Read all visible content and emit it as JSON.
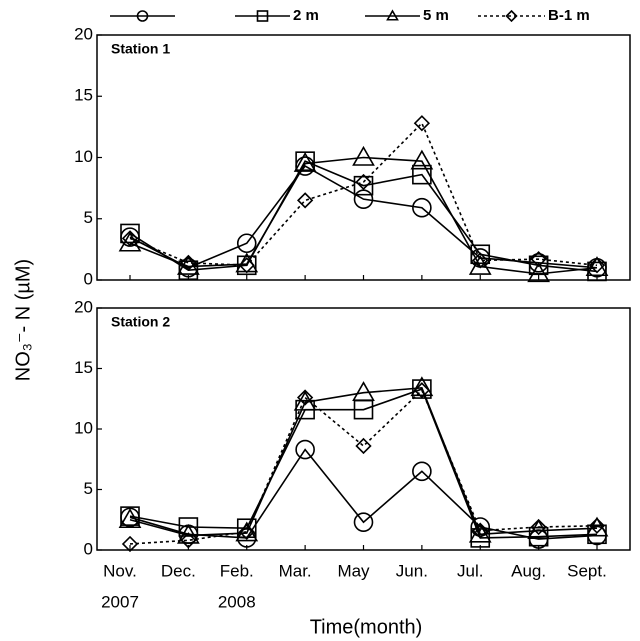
{
  "chart_data": [
    {
      "type": "line",
      "title": "Station 1",
      "ylabel": "NO₃⁻- N (µM)",
      "categories": [
        "Nov.",
        "Dec.",
        "Feb.",
        "Mar.",
        "May",
        "Jun.",
        "Jul.",
        "Aug.",
        "Sept."
      ],
      "ylim": [
        0,
        20
      ],
      "yticks": [
        0,
        5,
        10,
        15,
        20
      ],
      "series": [
        {
          "name": null,
          "color": "#000000",
          "marker": "circle",
          "dashed": false,
          "values": [
            3.5,
            1.0,
            3.0,
            9.3,
            6.6,
            5.9,
            1.8,
            1.4,
            1.0
          ]
        },
        {
          "name": "2 m",
          "color": "#000000",
          "marker": "square",
          "dashed": false,
          "values": [
            3.8,
            0.8,
            1.2,
            9.7,
            7.7,
            8.6,
            2.1,
            1.2,
            0.7
          ]
        },
        {
          "name": "5 m",
          "color": "#000000",
          "marker": "triangle",
          "dashed": false,
          "values": [
            3.0,
            1.1,
            1.3,
            9.5,
            10.0,
            9.7,
            1.1,
            0.5,
            1.0
          ]
        },
        {
          "name": "B-1 m",
          "color": "#000000",
          "marker": "diamond",
          "dashed": true,
          "values": [
            3.4,
            1.4,
            1.2,
            6.5,
            8.0,
            12.8,
            1.6,
            1.7,
            1.2
          ]
        }
      ]
    },
    {
      "type": "line",
      "title": "Station 2",
      "xlabel": "Time(month)",
      "categories": [
        "Nov.",
        "Dec.",
        "Feb.",
        "Mar.",
        "May",
        "Jun.",
        "Jul.",
        "Aug.",
        "Sept."
      ],
      "category_years": [
        "2007",
        null,
        "2008",
        null,
        null,
        null,
        null,
        null,
        null
      ],
      "ylim": [
        0,
        20
      ],
      "yticks": [
        0,
        5,
        10,
        15,
        20
      ],
      "series": [
        {
          "color": "#000000",
          "marker": "circle",
          "dashed": false,
          "values": [
            2.7,
            1.3,
            1.0,
            8.3,
            2.3,
            6.5,
            1.9,
            0.9,
            1.2
          ]
        },
        {
          "color": "#000000",
          "marker": "square",
          "dashed": false,
          "values": [
            2.8,
            1.9,
            1.8,
            11.6,
            11.6,
            13.3,
            1.0,
            1.1,
            1.3
          ]
        },
        {
          "color": "#000000",
          "marker": "triangle",
          "dashed": false,
          "values": [
            2.5,
            1.2,
            1.4,
            12.2,
            13.0,
            13.4,
            1.3,
            1.6,
            1.8
          ]
        },
        {
          "color": "#000000",
          "marker": "diamond",
          "dashed": true,
          "values": [
            0.5,
            0.8,
            1.5,
            12.6,
            8.6,
            13.2,
            1.6,
            1.9,
            2.0
          ]
        }
      ]
    }
  ]
}
